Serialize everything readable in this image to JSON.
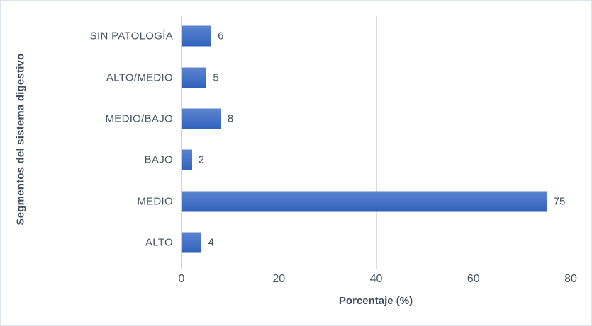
{
  "frame": {
    "background": "#ffffff",
    "border_color": "#dde3ea"
  },
  "chart_data": {
    "type": "bar",
    "orientation": "horizontal",
    "categories": [
      "SIN PATOLOGÍA",
      "ALTO/MEDIO",
      "MEDIO/BAJO",
      "BAJO",
      "MEDIO",
      "ALTO"
    ],
    "values": [
      6,
      5,
      8,
      2,
      75,
      4
    ],
    "data_labels": [
      6,
      5,
      8,
      2,
      75,
      4
    ],
    "title": "",
    "xlabel": "Porcentaje (%)",
    "ylabel": "Segmentos del sistema digestivo",
    "xticks": [
      0,
      20,
      40,
      60,
      80
    ],
    "xlim": [
      0,
      80
    ],
    "grid": true,
    "legend": false,
    "bar_color_top": "#5d85cf",
    "bar_color_bottom": "#3062bc",
    "gridline_color": "#d8dce1",
    "text_color": "#46525f",
    "title_color": "#3f4c5d"
  }
}
